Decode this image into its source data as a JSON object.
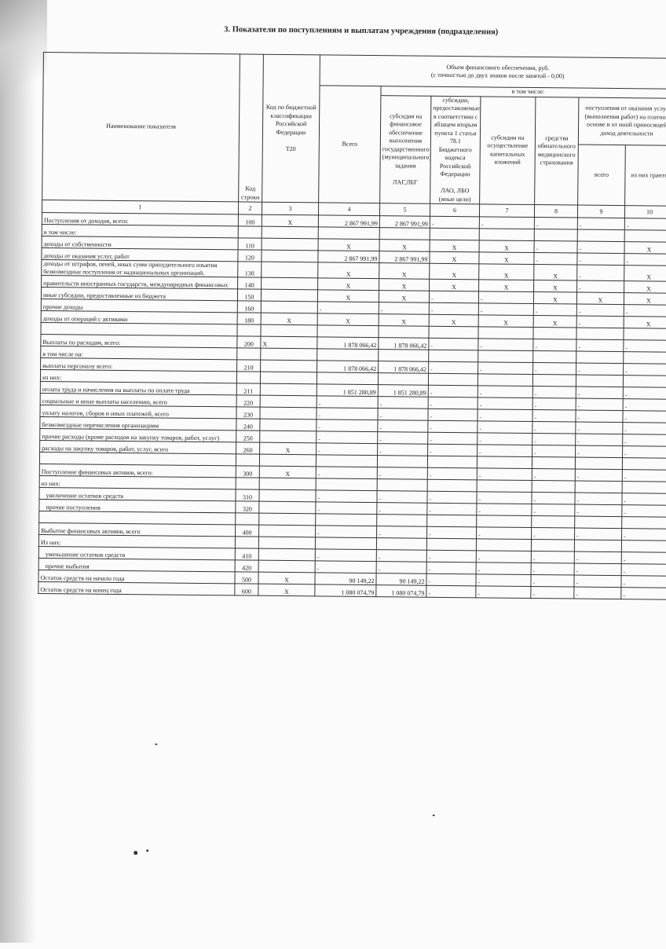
{
  "title": "3. Показатели по поступлениям и выплатам учреждения (подразделения)",
  "header": {
    "name": "Наименование показателя",
    "code": "Код строки",
    "kbk": "Код по бюджетной классификации Российской Федерации",
    "kbk_sub": "Т20",
    "volume": "Объем финансового обеспечения, руб.",
    "volume_sub": "(с точностью до двух знаков после запятой - 0,00)",
    "total": "Всего",
    "including": "в том числе:",
    "c5": "субсидия на финансовое обеспечение выполнения государственного (муниципального) задания",
    "c5_sub": "ЛАГ,ЛБГ",
    "c6": "субсидии, предоставляемые в соответствии с абзацем вторым пункта 1 статьи 78.1 Бюджетного кодекса Российской Федерации",
    "c6_sub": "ЛАО, ЛБО (иные цели)",
    "c7": "субсидии на осуществление капитальных вложений",
    "c8": "средства обязательного медицинского страхования",
    "paid": "поступления от оказания услуг (выполнения работ) на платной основе и от иной приносящей доход деятельности",
    "paid_total": "всего",
    "paid_grants": "из них гранты"
  },
  "column_numbers": [
    "1",
    "2",
    "3",
    "4",
    "5",
    "6",
    "7",
    "8",
    "9",
    "10"
  ],
  "rows": [
    {
      "name": "Поступления от доходов, всего:",
      "cells": [
        "100",
        "X",
        "2 867 991,99",
        "2 867 991,99",
        "-",
        "-",
        "-",
        "-",
        "-"
      ]
    },
    {
      "name": "в том числе:",
      "cells": [
        "",
        "",
        "",
        "",
        "",
        "",
        "",
        "",
        ""
      ]
    },
    {
      "name": "доходы от собственности",
      "cells": [
        "110",
        "",
        "X",
        "X",
        "X",
        "X",
        "-",
        "-",
        "X"
      ]
    },
    {
      "name": "доходы от оказания услуг, работ",
      "cells": [
        "120",
        "",
        "2 867 991,99",
        "2 867 991,99",
        "X",
        "X",
        "-",
        "-",
        "-"
      ]
    },
    {
      "name": "доходы от штрафов, пеней, иных сумм принудительного изъятия",
      "name2": "безвозмездные поступления от наднациональных организаций,",
      "cells": [
        "130",
        "",
        "X",
        "X",
        "X",
        "X",
        "X",
        "-",
        "X"
      ]
    },
    {
      "name": "правительств иностранных государств, международных финансовых",
      "cells": [
        "140",
        "",
        "X",
        "X",
        "X",
        "X",
        "X",
        "-",
        "X"
      ]
    },
    {
      "name": "иные субсидии, предоставленные из бюджета",
      "cells": [
        "150",
        "",
        "X",
        "X",
        "-",
        "-",
        "X",
        "X",
        "X"
      ]
    },
    {
      "name": "прочие доходы",
      "cells": [
        "160",
        "",
        "-",
        "-",
        "-",
        "-",
        "-",
        "-",
        "-"
      ]
    },
    {
      "name": "доходы от операций с активами",
      "cells": [
        "180",
        "X",
        "X",
        "X",
        "X",
        "X",
        "X",
        "-",
        "X"
      ]
    },
    {
      "name": "",
      "cells": [
        "",
        "",
        "",
        "",
        "",
        "",
        "",
        "",
        ""
      ]
    },
    {
      "name": "Выплаты по расходам, всего:",
      "cells": [
        "200",
        "X",
        "1 878 066,42",
        "1 878 066,42",
        "-",
        "-",
        "-",
        "-",
        "-"
      ]
    },
    {
      "name": "в том числе на:",
      "cells": [
        "",
        "",
        "",
        "",
        "",
        "",
        "",
        "",
        ""
      ]
    },
    {
      "name": "выплаты персоналу всего:",
      "cells": [
        "210",
        "",
        "1 878 066,42",
        "1 878 066,42",
        "-",
        "-",
        "-",
        "-",
        "-"
      ]
    },
    {
      "name": "из них:",
      "cells": [
        "",
        "",
        "",
        "",
        "",
        "",
        "",
        "",
        ""
      ]
    },
    {
      "name": "оплата труда и начисления на выплаты по оплате труда",
      "cells": [
        "211",
        "",
        "1 851 280,89",
        "1 851 280,89",
        "-",
        "-",
        "-",
        "-",
        "-"
      ]
    },
    {
      "name": "социальные и иные выплаты населению, всего",
      "cells": [
        "220",
        "",
        "-",
        "-",
        "-",
        "-",
        "-",
        "-",
        "-"
      ]
    },
    {
      "name": "уплату налогов, сборов и иных платежей, всего",
      "cells": [
        "230",
        "",
        "-",
        "-",
        "-",
        "-",
        "-",
        "-",
        "-"
      ]
    },
    {
      "name": "безвозмездные перечисления организациям",
      "cells": [
        "240",
        "",
        "-",
        "-",
        "-",
        "-",
        "-",
        "-",
        "-"
      ]
    },
    {
      "name": "прочие расходы (кроме расходов на закупку товаров, работ, услуг)",
      "cells": [
        "250",
        "",
        "-",
        "-",
        "-",
        "-",
        "-",
        "-",
        "-"
      ]
    },
    {
      "name": "расходы на закупку товаров, работ, услуг, всего",
      "cells": [
        "260",
        "X",
        "-",
        "-",
        "-",
        "-",
        "-",
        "-",
        "-"
      ]
    },
    {
      "name": "",
      "cells": [
        "",
        "",
        "",
        "",
        "",
        "",
        "",
        "",
        ""
      ]
    },
    {
      "name": "Поступление финансовых активов, всего:",
      "cells": [
        "300",
        "X",
        "-",
        "-",
        "-",
        "-",
        "-",
        "-",
        "-"
      ]
    },
    {
      "name": "из них:",
      "cells": [
        "",
        "",
        "",
        "",
        "",
        "",
        "",
        "",
        ""
      ]
    },
    {
      "name": "   увеличение остатков средств",
      "cells": [
        "310",
        "",
        "-",
        "-",
        "-",
        "-",
        "-",
        "-",
        "-"
      ]
    },
    {
      "name": "   прочие поступления",
      "cells": [
        "320",
        "",
        "-",
        "-",
        "-",
        "-",
        "-",
        "-",
        "-"
      ]
    },
    {
      "name": "",
      "cells": [
        "",
        "",
        "",
        "",
        "",
        "",
        "",
        "",
        ""
      ]
    },
    {
      "name": "Выбытие финансовых активов, всего",
      "cells": [
        "400",
        "",
        "-",
        "-",
        "-",
        "-",
        "-",
        "-",
        "-"
      ]
    },
    {
      "name": "Из них:",
      "cells": [
        "",
        "",
        "",
        "",
        "",
        "",
        "",
        "",
        ""
      ]
    },
    {
      "name": "   уменьшение остатков средств",
      "cells": [
        "410",
        "",
        "-",
        "-",
        "-",
        "-",
        "-",
        "-",
        "-"
      ]
    },
    {
      "name": "   прочие выбытия",
      "cells": [
        "420",
        "",
        "-",
        "-",
        "-",
        "-",
        "-",
        "-",
        "-"
      ]
    },
    {
      "name": "Остаток средств на начало года",
      "cells": [
        "500",
        "X",
        "90 149,22",
        "90 149,22",
        "-",
        "-",
        "-",
        "-",
        "-"
      ]
    },
    {
      "name": "Остаток средств на конец года",
      "cells": [
        "600",
        "X",
        "1 080 074,79",
        "1 080 074,79",
        "-",
        "-",
        "-",
        "-",
        "-"
      ]
    }
  ]
}
